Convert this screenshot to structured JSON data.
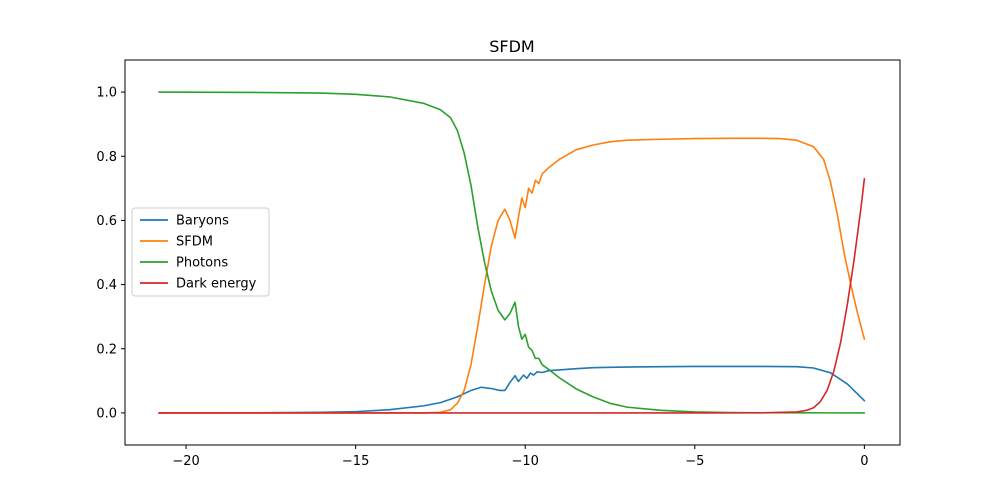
{
  "chart_data": {
    "type": "line",
    "title": "SFDM",
    "xlabel": "",
    "ylabel": "",
    "xlim": [
      -21.8,
      1.05
    ],
    "ylim": [
      -0.1,
      1.1
    ],
    "xticks": [
      -20,
      -15,
      -10,
      -5,
      0
    ],
    "xtick_labels": [
      "−20",
      "−15",
      "−10",
      "−5",
      "0"
    ],
    "yticks": [
      0.0,
      0.2,
      0.4,
      0.6,
      0.8,
      1.0
    ],
    "ytick_labels": [
      "0.0",
      "0.2",
      "0.4",
      "0.6",
      "0.8",
      "1.0"
    ],
    "grid": false,
    "legend_position": "center-left",
    "series": [
      {
        "name": "Baryons",
        "color": "#1f77b4",
        "x": [
          -20.8,
          -18,
          -16,
          -15,
          -14,
          -13,
          -12.5,
          -12,
          -11.6,
          -11.3,
          -11.0,
          -10.75,
          -10.6,
          -10.45,
          -10.3,
          -10.2,
          -10.05,
          -9.95,
          -9.85,
          -9.75,
          -9.65,
          -9.5,
          -9.3,
          -9.0,
          -8.5,
          -8.0,
          -7.5,
          -7.0,
          -6.0,
          -5.0,
          -4.0,
          -3.0,
          -2.0,
          -1.5,
          -1.0,
          -0.5,
          0.0
        ],
        "y": [
          0.0,
          0.0005,
          0.002,
          0.004,
          0.01,
          0.022,
          0.032,
          0.05,
          0.07,
          0.08,
          0.076,
          0.07,
          0.07,
          0.095,
          0.116,
          0.098,
          0.118,
          0.108,
          0.124,
          0.118,
          0.128,
          0.126,
          0.132,
          0.134,
          0.138,
          0.141,
          0.142,
          0.143,
          0.144,
          0.145,
          0.145,
          0.145,
          0.144,
          0.14,
          0.125,
          0.09,
          0.038
        ]
      },
      {
        "name": "SFDM",
        "color": "#ff7f0e",
        "x": [
          -20.8,
          -15,
          -13,
          -12.5,
          -12.2,
          -12.0,
          -11.8,
          -11.6,
          -11.4,
          -11.2,
          -11.0,
          -10.8,
          -10.6,
          -10.45,
          -10.3,
          -10.2,
          -10.1,
          -10.0,
          -9.9,
          -9.8,
          -9.7,
          -9.6,
          -9.5,
          -9.3,
          -9.0,
          -8.5,
          -8.0,
          -7.5,
          -7.0,
          -6.0,
          -5.0,
          -4.0,
          -3.0,
          -2.5,
          -2.0,
          -1.5,
          -1.2,
          -1.0,
          -0.8,
          -0.6,
          -0.4,
          -0.2,
          0.0
        ],
        "y": [
          0.0,
          0.0,
          0.0,
          0.002,
          0.01,
          0.03,
          0.07,
          0.15,
          0.27,
          0.4,
          0.52,
          0.6,
          0.635,
          0.6,
          0.545,
          0.61,
          0.67,
          0.64,
          0.7,
          0.685,
          0.725,
          0.715,
          0.745,
          0.765,
          0.79,
          0.82,
          0.835,
          0.845,
          0.85,
          0.853,
          0.855,
          0.856,
          0.856,
          0.855,
          0.85,
          0.83,
          0.79,
          0.72,
          0.62,
          0.5,
          0.4,
          0.31,
          0.23
        ]
      },
      {
        "name": "Photons",
        "color": "#2ca02c",
        "x": [
          -20.8,
          -18,
          -16,
          -15,
          -14,
          -13,
          -12.5,
          -12.2,
          -12.0,
          -11.8,
          -11.6,
          -11.4,
          -11.2,
          -11.0,
          -10.8,
          -10.6,
          -10.45,
          -10.3,
          -10.2,
          -10.1,
          -10.0,
          -9.9,
          -9.8,
          -9.7,
          -9.6,
          -9.5,
          -9.3,
          -9.0,
          -8.5,
          -8.0,
          -7.5,
          -7.0,
          -6.0,
          -5.0,
          -4.0,
          -3.0,
          -2.0,
          -1.0,
          0.0
        ],
        "y": [
          1.0,
          0.999,
          0.997,
          0.993,
          0.985,
          0.965,
          0.945,
          0.92,
          0.88,
          0.81,
          0.71,
          0.58,
          0.47,
          0.38,
          0.32,
          0.29,
          0.31,
          0.345,
          0.27,
          0.23,
          0.245,
          0.205,
          0.195,
          0.17,
          0.17,
          0.15,
          0.135,
          0.11,
          0.075,
          0.05,
          0.03,
          0.018,
          0.008,
          0.003,
          0.001,
          0.0005,
          0.0002,
          0.0001,
          0.0
        ]
      },
      {
        "name": "Dark energy",
        "color": "#d62728",
        "x": [
          -20.8,
          -10,
          -5,
          -3,
          -2,
          -1.7,
          -1.5,
          -1.3,
          -1.1,
          -0.9,
          -0.7,
          -0.5,
          -0.3,
          -0.1,
          0.0
        ],
        "y": [
          0.0,
          0.0,
          0.0,
          0.0002,
          0.003,
          0.008,
          0.016,
          0.035,
          0.07,
          0.13,
          0.22,
          0.34,
          0.48,
          0.64,
          0.73
        ]
      }
    ]
  }
}
